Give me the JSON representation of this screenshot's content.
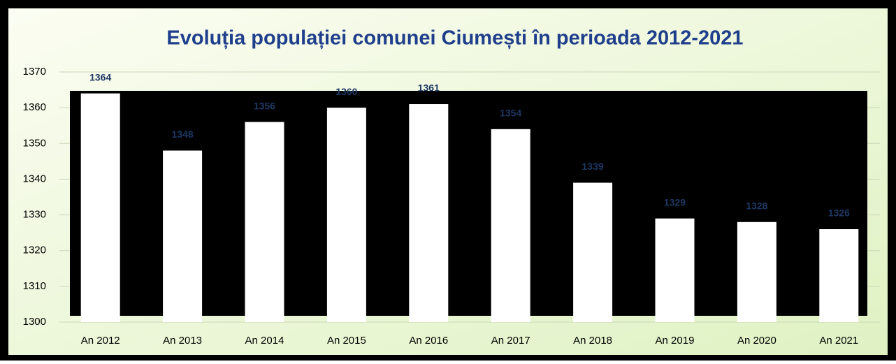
{
  "chart_data": {
    "type": "bar",
    "title": "Evoluția populației comunei Ciumești în perioada 2012-2021",
    "categories": [
      "An 2012",
      "An 2013",
      "An 2014",
      "An 2015",
      "An 2016",
      "An 2017",
      "An 2018",
      "An 2019",
      "An 2020",
      "An 2021"
    ],
    "values": [
      1364,
      1348,
      1356,
      1360,
      1361,
      1354,
      1339,
      1329,
      1328,
      1326
    ],
    "color": "#ffffff",
    "label_color": "#1f3864",
    "ylim": [
      1300,
      1370
    ],
    "yticks": [
      1300,
      1310,
      1320,
      1330,
      1340,
      1350,
      1360,
      1370
    ],
    "grid": true
  }
}
